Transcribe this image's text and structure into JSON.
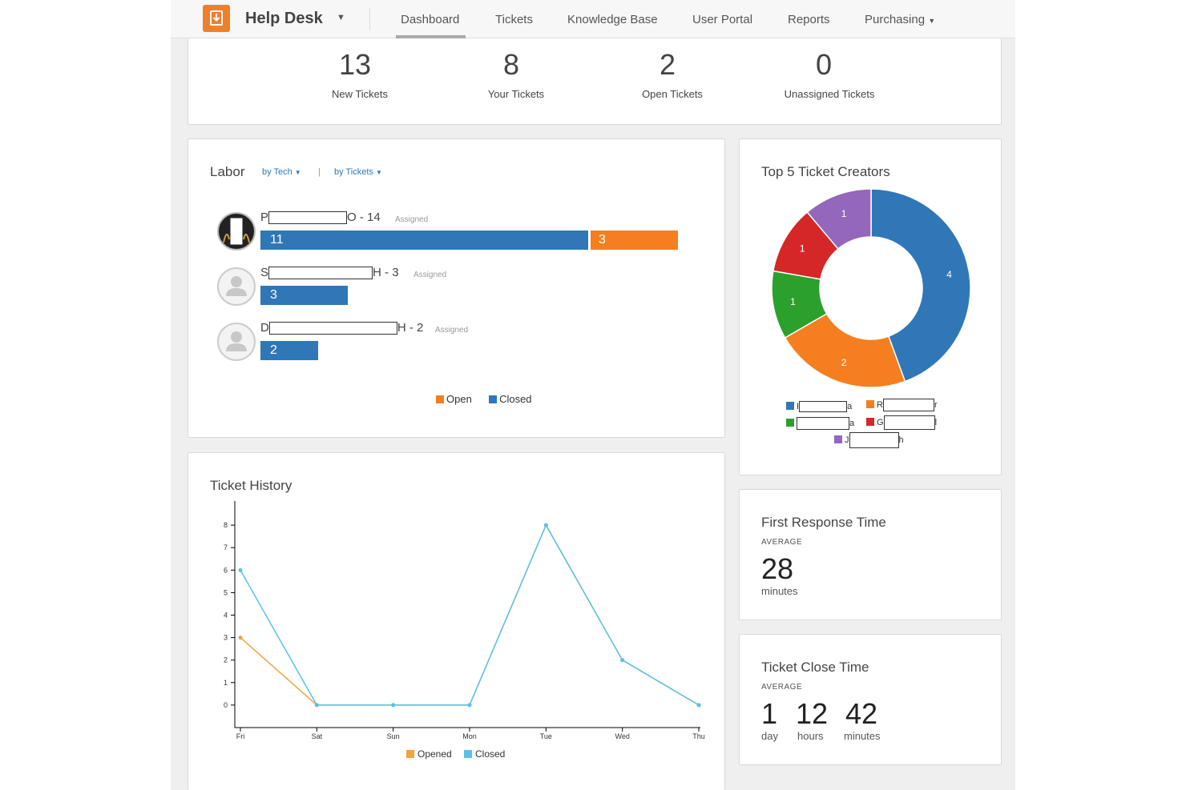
{
  "nav": {
    "app_title": "Help Desk",
    "items": [
      "Dashboard",
      "Tickets",
      "Knowledge Base",
      "User Portal",
      "Reports",
      "Purchasing"
    ],
    "active": "Dashboard"
  },
  "stats": [
    {
      "value": "13",
      "label": "New Tickets"
    },
    {
      "value": "8",
      "label": "Your Tickets"
    },
    {
      "value": "2",
      "label": "Open Tickets"
    },
    {
      "value": "0",
      "label": "Unassigned Tickets"
    }
  ],
  "labor": {
    "title": "Labor",
    "filter1": "by Tech",
    "filter2": "by Tickets",
    "separator": "|",
    "assigned_label": "Assigned",
    "techs": [
      {
        "prefix": "P",
        "suffix": "O",
        "total_text": " - 14",
        "closed": 11,
        "open": 3
      },
      {
        "prefix": "S",
        "suffix": "H",
        "total_text": " - 3",
        "closed": 3,
        "open": 0
      },
      {
        "prefix": "D",
        "suffix": "H",
        "total_text": " - 2",
        "closed": 2,
        "open": 0
      }
    ],
    "legend": {
      "open": "Open",
      "closed": "Closed"
    },
    "colors": {
      "open": "#f57f1f",
      "closed": "#2f77b6"
    }
  },
  "creators": {
    "title": "Top 5 Ticket Creators",
    "legend": [
      {
        "prefix": "I",
        "suffix": "a",
        "color": "#2f77b6"
      },
      {
        "prefix": "R",
        "suffix": "r",
        "color": "#f57f1f"
      },
      {
        "prefix": "",
        "suffix": "a",
        "color": "#2ca02c"
      },
      {
        "prefix": "G",
        "suffix": "l",
        "color": "#d62728"
      },
      {
        "prefix": "J",
        "suffix": "h",
        "color": "#9467bd"
      }
    ]
  },
  "history": {
    "title": "Ticket History"
  },
  "first_response": {
    "title": "First Response Time",
    "avg_label": "AVERAGE",
    "value": "28",
    "unit": "minutes"
  },
  "close_time": {
    "title": "Ticket Close Time",
    "avg_label": "AVERAGE",
    "parts": [
      {
        "value": "1",
        "unit": "day"
      },
      {
        "value": "12",
        "unit": "hours"
      },
      {
        "value": "42",
        "unit": "minutes"
      }
    ]
  },
  "chart_data": [
    {
      "type": "pie",
      "title": "Top 5 Ticket Creators",
      "categories": [
        "I…a",
        "R…r",
        "…a",
        "G…l",
        "J…h"
      ],
      "values": [
        4,
        2,
        1,
        1,
        1
      ],
      "colors": [
        "#2f77b6",
        "#f57f1f",
        "#2ca02c",
        "#d62728",
        "#9467bd"
      ],
      "donut": true
    },
    {
      "type": "line",
      "title": "Ticket History",
      "categories": [
        "Fri",
        "Sat",
        "Sun",
        "Mon",
        "Tue",
        "Wed",
        "Thu"
      ],
      "series": [
        {
          "name": "Opened",
          "values": [
            3,
            0,
            0,
            0,
            8,
            2,
            0
          ],
          "color": "#f5a23c"
        },
        {
          "name": "Closed",
          "values": [
            6,
            0,
            0,
            0,
            8,
            2,
            0
          ],
          "color": "#5bc0eb"
        }
      ],
      "ylim": [
        -1,
        9
      ],
      "yticks": [
        0,
        1,
        2,
        3,
        4,
        5,
        6,
        7,
        8
      ]
    }
  ]
}
